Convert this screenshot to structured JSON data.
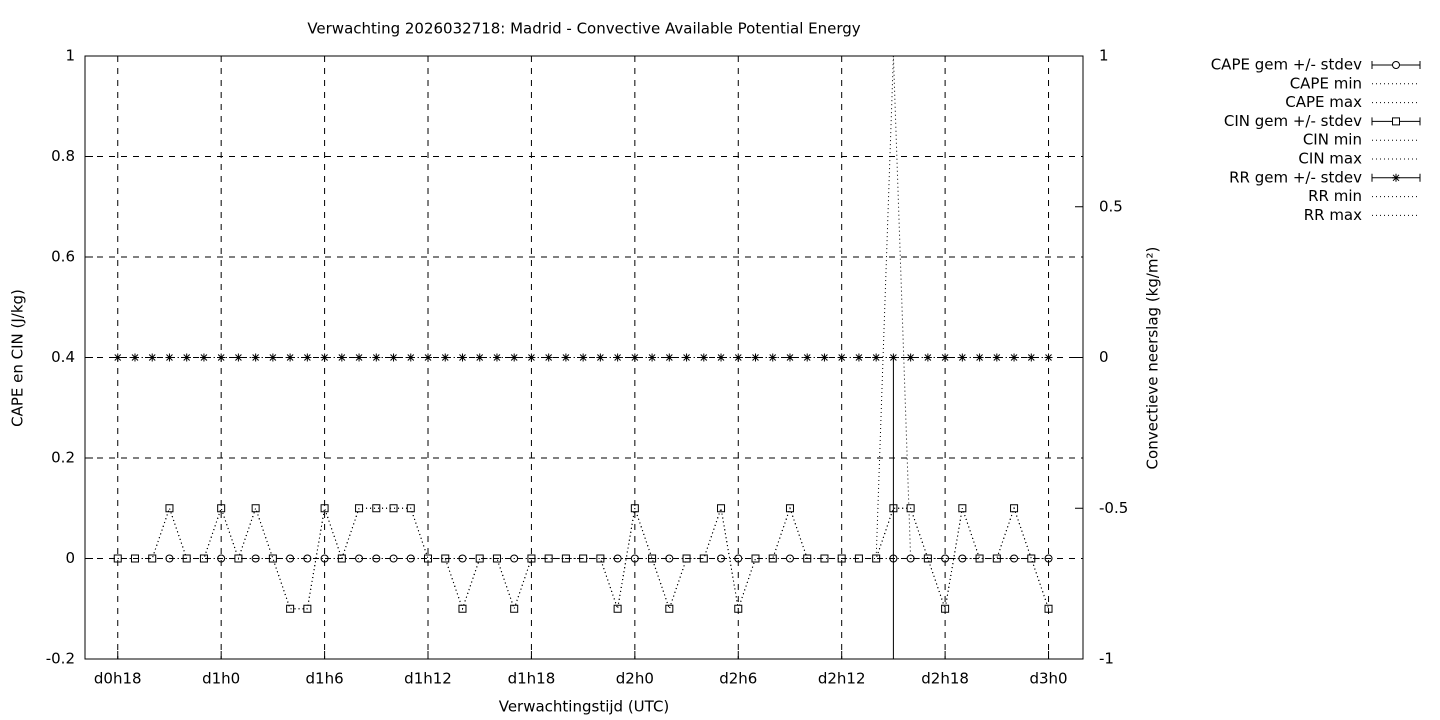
{
  "chart_data": {
    "type": "line",
    "title": "Verwachting 2026032718: Madrid - Convective Available Potential Energy",
    "xlabel": "Verwachtingstijd (UTC)",
    "ylabel": "CAPE en CIN (J/kg)",
    "y2label": "Convectieve neerslag (kg/m²)",
    "x": [
      18,
      19,
      20,
      21,
      22,
      23,
      24,
      25,
      26,
      27,
      28,
      29,
      30,
      31,
      32,
      33,
      34,
      35,
      36,
      37,
      38,
      39,
      40,
      41,
      42,
      43,
      44,
      45,
      46,
      47,
      48,
      49,
      50,
      51,
      52,
      53,
      54,
      55,
      56,
      57,
      58,
      59,
      60,
      61,
      62,
      63,
      64,
      65,
      66,
      67,
      68,
      69,
      70,
      71,
      72
    ],
    "xlim": [
      16.1,
      74.0
    ],
    "xticks": [
      {
        "value": 18,
        "label": "d0h18"
      },
      {
        "value": 24,
        "label": "d1h0"
      },
      {
        "value": 30,
        "label": "d1h6"
      },
      {
        "value": 36,
        "label": "d1h12"
      },
      {
        "value": 42,
        "label": "d1h18"
      },
      {
        "value": 48,
        "label": "d2h0"
      },
      {
        "value": 54,
        "label": "d2h6"
      },
      {
        "value": 60,
        "label": "d2h12"
      },
      {
        "value": 66,
        "label": "d2h18"
      },
      {
        "value": 72,
        "label": "d3h0"
      }
    ],
    "ylim": [
      -0.2,
      1
    ],
    "yticks": [
      -0.2,
      0,
      0.2,
      0.4,
      0.6,
      0.8,
      1
    ],
    "y2lim": [
      -1,
      1
    ],
    "y2ticks": [
      -1,
      -0.5,
      0,
      0.5,
      1
    ],
    "grid": true,
    "legend": "top-right",
    "series": [
      {
        "name": "CAPE gem +/- stdev",
        "color": "#000000",
        "marker": "circle",
        "values": [
          0,
          0,
          0,
          0,
          0,
          0,
          0,
          0,
          0,
          0,
          0,
          0,
          0,
          0,
          0,
          0,
          0,
          0,
          0,
          0,
          0,
          0,
          0,
          0,
          0,
          0,
          0,
          0,
          0,
          0,
          0,
          0,
          0,
          0,
          0,
          0,
          0,
          0,
          0,
          0,
          0,
          0,
          0,
          0,
          0,
          0,
          0,
          0,
          0,
          0,
          0,
          0,
          0,
          0,
          0
        ]
      },
      {
        "name": "CAPE min",
        "color": "#000000",
        "values": [
          0,
          0,
          0,
          0,
          0,
          0,
          0,
          0,
          0,
          0,
          0,
          0,
          0,
          0,
          0,
          0,
          0,
          0,
          0,
          0,
          0,
          0,
          0,
          0,
          0,
          0,
          0,
          0,
          0,
          0,
          0,
          0,
          0,
          0,
          0,
          0,
          0,
          0,
          0,
          0,
          0,
          0,
          0,
          0,
          0,
          0,
          0,
          0,
          0,
          0,
          0,
          0,
          0,
          0,
          0
        ]
      },
      {
        "name": "CAPE max",
        "color": "#000000",
        "values": [
          0,
          0,
          0,
          0,
          0,
          0,
          0,
          0,
          0,
          0,
          0,
          0,
          0,
          0,
          0,
          0,
          0,
          0,
          0,
          0,
          0,
          0,
          0,
          0,
          0,
          0,
          0,
          0,
          0,
          0,
          0,
          0,
          0,
          0,
          0,
          0,
          0,
          0,
          0,
          0,
          0,
          0,
          0,
          0,
          0,
          1,
          0,
          0,
          0,
          0,
          0,
          0,
          0,
          0,
          0
        ]
      },
      {
        "name": "CIN gem +/- stdev",
        "color": "#000000",
        "marker": "square",
        "values": [
          0,
          0,
          0,
          0.1,
          0,
          0,
          0.1,
          0,
          0.1,
          0,
          -0.1,
          -0.1,
          0.1,
          0,
          0.1,
          0.1,
          0.1,
          0.1,
          0,
          0,
          -0.1,
          0,
          0,
          -0.1,
          0,
          0,
          0,
          0,
          0,
          -0.1,
          0.1,
          0,
          -0.1,
          0,
          0,
          0.1,
          -0.1,
          0,
          0,
          0.1,
          0,
          0,
          0,
          0,
          0,
          0.1,
          0.1,
          0,
          -0.1,
          0.1,
          0,
          0,
          0.1,
          0,
          -0.1
        ]
      },
      {
        "name": "CIN min",
        "color": "#000000",
        "values": [
          0,
          0,
          0,
          0.1,
          0,
          0,
          0.1,
          0,
          0.1,
          0,
          -0.1,
          -0.1,
          0.1,
          0,
          0.1,
          0.1,
          0.1,
          0.1,
          0,
          0,
          -0.1,
          0,
          0,
          -0.1,
          0,
          0,
          0,
          0,
          0,
          -0.1,
          0.1,
          0,
          -0.1,
          0,
          0,
          0.1,
          -0.1,
          0,
          0,
          0.1,
          0,
          0,
          0,
          0,
          0,
          0.1,
          0.1,
          0,
          -0.1,
          0.1,
          0,
          0,
          0.1,
          0,
          -0.1
        ]
      },
      {
        "name": "CIN max",
        "color": "#000000",
        "values": [
          0,
          0,
          0,
          0.1,
          0,
          0,
          0.1,
          0,
          0.1,
          0,
          -0.1,
          -0.1,
          0.1,
          0,
          0.1,
          0.1,
          0.1,
          0.1,
          0,
          0,
          -0.1,
          0,
          0,
          -0.1,
          0,
          0,
          0,
          0,
          0,
          -0.1,
          0.1,
          0,
          -0.1,
          0,
          0,
          0.1,
          -0.1,
          0,
          0,
          0.1,
          0,
          0,
          0,
          0,
          0,
          0.1,
          0.1,
          0,
          -0.1,
          0.1,
          0,
          0,
          0.1,
          0,
          -0.1
        ]
      },
      {
        "name": "RR gem +/- stdev",
        "color": "#000000",
        "marker": "star",
        "axis": "y2",
        "values": [
          0,
          0,
          0,
          0,
          0,
          0,
          0,
          0,
          0,
          0,
          0,
          0,
          0,
          0,
          0,
          0,
          0,
          0,
          0,
          0,
          0,
          0,
          0,
          0,
          0,
          0,
          0,
          0,
          0,
          0,
          0,
          0,
          0,
          0,
          0,
          0,
          0,
          0,
          0,
          0,
          0,
          0,
          0,
          0,
          0,
          0,
          0,
          0,
          0,
          0,
          0,
          0,
          0,
          0,
          0
        ],
        "low": [
          null,
          null,
          null,
          null,
          null,
          null,
          null,
          null,
          null,
          null,
          null,
          null,
          null,
          null,
          null,
          null,
          null,
          null,
          null,
          null,
          null,
          null,
          null,
          null,
          null,
          null,
          null,
          null,
          null,
          null,
          null,
          null,
          null,
          null,
          null,
          null,
          null,
          null,
          null,
          null,
          null,
          null,
          null,
          null,
          null,
          -1,
          null,
          null,
          null,
          null,
          null,
          null,
          null,
          null,
          null
        ]
      },
      {
        "name": "RR min",
        "color": "#000000",
        "axis": "y2",
        "values": [
          0,
          0,
          0,
          0,
          0,
          0,
          0,
          0,
          0,
          0,
          0,
          0,
          0,
          0,
          0,
          0,
          0,
          0,
          0,
          0,
          0,
          0,
          0,
          0,
          0,
          0,
          0,
          0,
          0,
          0,
          0,
          0,
          0,
          0,
          0,
          0,
          0,
          0,
          0,
          0,
          0,
          0,
          0,
          0,
          0,
          0,
          0,
          0,
          0,
          0,
          0,
          0,
          0,
          0,
          0
        ]
      },
      {
        "name": "RR max",
        "color": "#000000",
        "axis": "y2",
        "values": [
          0,
          0,
          0,
          0,
          0,
          0,
          0,
          0,
          0,
          0,
          0,
          0,
          0,
          0,
          0,
          0,
          0,
          0,
          0,
          0,
          0,
          0,
          0,
          0,
          0,
          0,
          0,
          0,
          0,
          0,
          0,
          0,
          0,
          0,
          0,
          0,
          0,
          0,
          0,
          0,
          0,
          0,
          0,
          0,
          0,
          0,
          0,
          0,
          0,
          0,
          0,
          0,
          0,
          0,
          0
        ]
      }
    ]
  }
}
